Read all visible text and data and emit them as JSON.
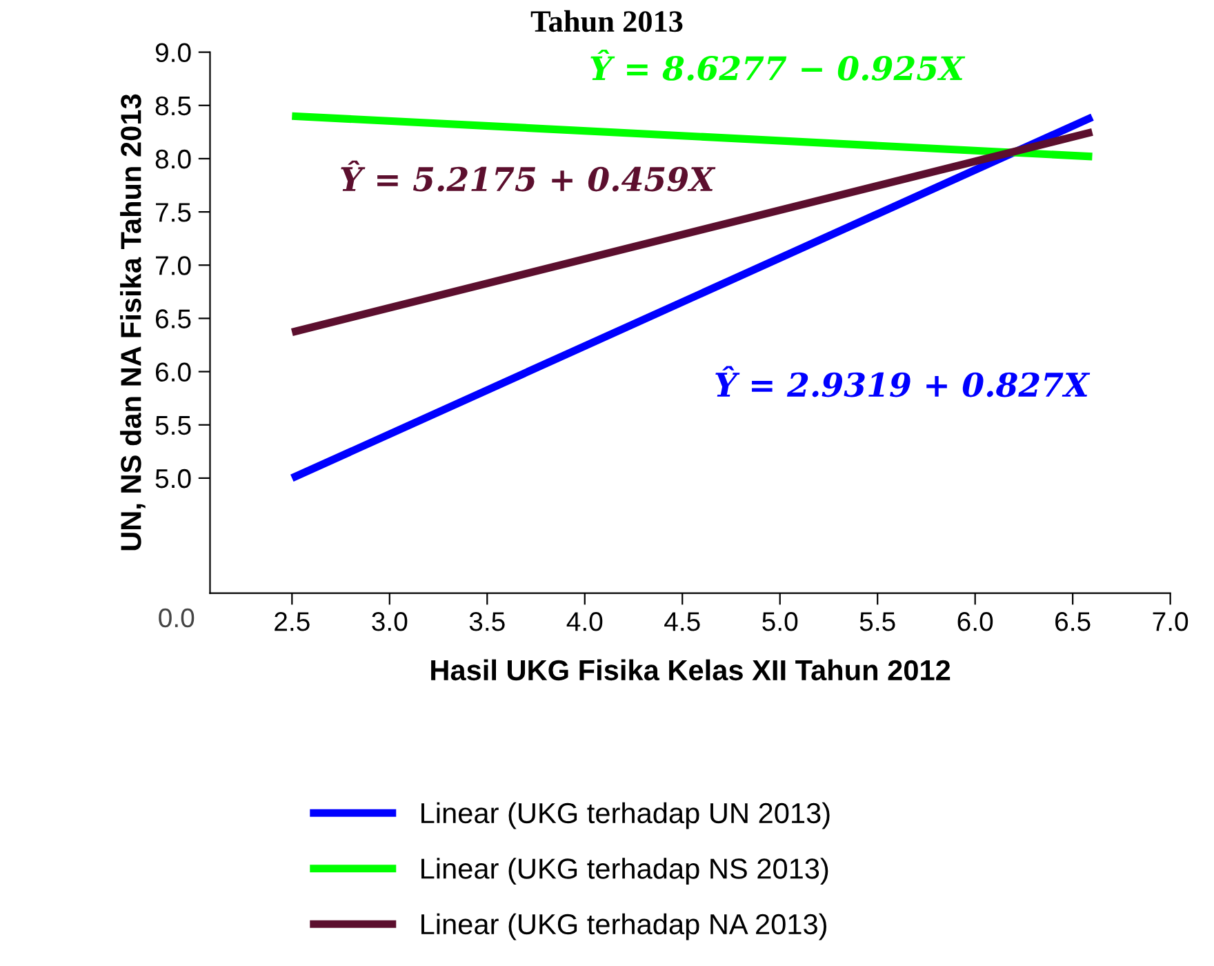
{
  "chart_data": {
    "type": "line",
    "title": "Tahun 2013",
    "xlabel": "Hasil UKG Fisika Kelas XII Tahun 2012",
    "ylabel": "UN, NS dan NA Fisika Tahun 2013",
    "x": [
      2.5,
      6.6
    ],
    "series": [
      {
        "name": "Linear (UKG terhadap UN 2013)",
        "color": "#0000ff",
        "values": [
          5.0,
          8.39
        ]
      },
      {
        "name": "Linear (UKG terhadap NS 2013)",
        "color": "#00ff00",
        "values": [
          8.4,
          8.02
        ]
      },
      {
        "name": "Linear (UKG terhadap NA 2013)",
        "color": "#5c0f2e",
        "values": [
          6.37,
          8.25
        ]
      }
    ],
    "annotations": [
      "Ŷ = 2.9319 + 0.827X",
      "Ŷ = 8.6277 − 0.925X",
      "Ŷ = 5.2175 + 0.459X",
      "0.0"
    ],
    "xlim": [
      2.08,
      7.0
    ],
    "ylim": [
      3.92,
      9.0
    ],
    "xticks": [
      2.5,
      {
        "value": 3,
        "label": "3.0"
      },
      3.5,
      {
        "value": 4,
        "label": "4.0"
      },
      4.5,
      {
        "value": 5,
        "label": "5.0"
      },
      5.5,
      {
        "value": 6,
        "label": "6.0"
      },
      6.5,
      {
        "value": 7,
        "label": "7.0"
      }
    ],
    "yticks": [
      {
        "value": 5,
        "label": "5.0"
      },
      5.5,
      {
        "value": 6,
        "label": "6.0"
      },
      6.5,
      {
        "value": 7,
        "label": "7.0"
      },
      7.5,
      {
        "value": 8,
        "label": "8.0"
      },
      8.5,
      {
        "value": 9,
        "label": "9.0"
      }
    ],
    "grid": false,
    "legend": "bottom",
    "marker": "none",
    "line_style": "solid"
  }
}
